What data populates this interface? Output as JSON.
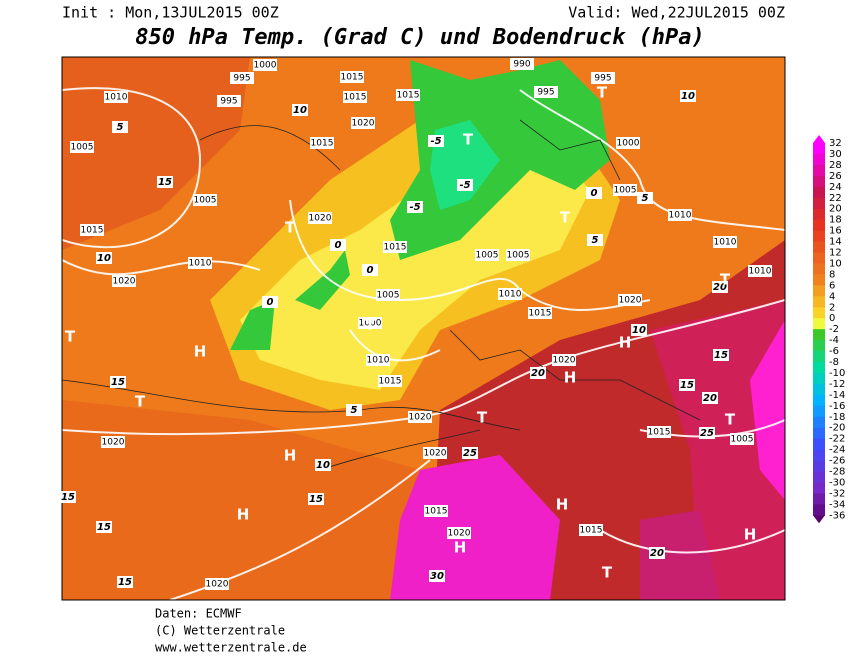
{
  "header": {
    "init": "Init : Mon,13JUL2015 00Z",
    "valid": "Valid: Wed,22JUL2015 00Z",
    "title": "850 hPa Temp. (Grad C) und Bodendruck (hPa)"
  },
  "legend": {
    "ticks": [
      32,
      30,
      28,
      26,
      24,
      22,
      20,
      18,
      16,
      14,
      12,
      10,
      8,
      6,
      4,
      2,
      0,
      -2,
      -4,
      -6,
      -8,
      -10,
      -12,
      -14,
      -16,
      -18,
      -20,
      -22,
      -24,
      -26,
      -28,
      -30,
      -32,
      -34,
      -36
    ]
  },
  "map": {
    "pressure_labels": [
      "995",
      "1000",
      "995",
      "1010",
      "1005",
      "1015",
      "1015",
      "1015",
      "1020",
      "1015",
      "1005",
      "1015",
      "1010",
      "1020",
      "1020",
      "1015",
      "1005",
      "1000",
      "1010",
      "1015",
      "1020",
      "1020",
      "1020",
      "1015",
      "1020",
      "1020",
      "1015",
      "1015",
      "1005",
      "1010",
      "1010",
      "1010",
      "1005",
      "1000",
      "995",
      "995",
      "990",
      "1005",
      "1005",
      "1010",
      "1015",
      "1020",
      "1020"
    ],
    "temp_labels": [
      "-5",
      "-5",
      "-5",
      "0",
      "0",
      "0",
      "5",
      "10",
      "15",
      "15",
      "15",
      "15",
      "15",
      "20",
      "25",
      "20",
      "30",
      "10",
      "10",
      "15",
      "15",
      "20",
      "25",
      "20",
      "0",
      "5",
      "5",
      "10",
      "5",
      "15",
      "10"
    ],
    "centers": [
      "H",
      "H",
      "H",
      "H",
      "H",
      "H",
      "H",
      "H",
      "T",
      "T",
      "T",
      "T",
      "T",
      "T",
      "T",
      "T",
      "T",
      "T",
      "T"
    ]
  },
  "footer": {
    "source": "Daten: ECMWF",
    "copyright": "(C) Wetterzentrale",
    "url": "www.wetterzentrale.de"
  }
}
